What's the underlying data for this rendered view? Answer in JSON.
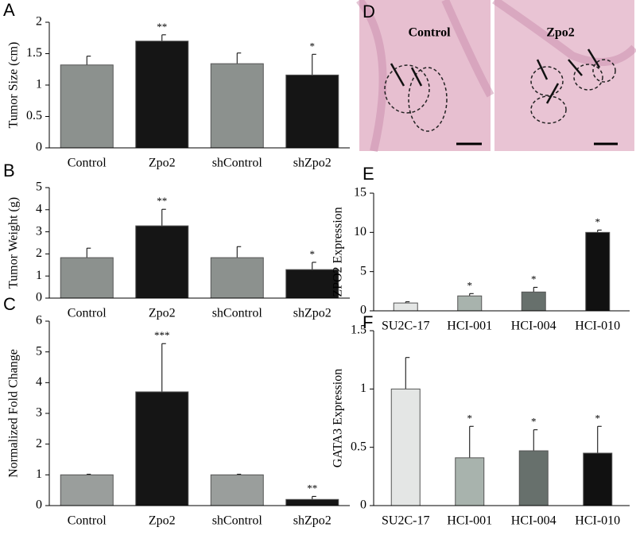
{
  "chart_data": [
    {
      "type": "bar",
      "panel": "A",
      "ylabel": "Tumor Size (cm)",
      "categories": [
        "Control",
        "Zpo2",
        "shControl",
        "shZpo2"
      ],
      "values": [
        1.32,
        1.7,
        1.34,
        1.16
      ],
      "errors": [
        0.14,
        0.1,
        0.17,
        0.33
      ],
      "colors": [
        "#8c918e",
        "#151515",
        "#8c918e",
        "#151515"
      ],
      "annotations": [
        null,
        "**",
        null,
        "*"
      ],
      "ylim": [
        0,
        2
      ],
      "yticks": [
        0,
        0.5,
        1,
        1.5,
        2
      ]
    },
    {
      "type": "bar",
      "panel": "B",
      "ylabel": "Tumor Weight (g)",
      "categories": [
        "Control",
        "Zpo2",
        "shControl",
        "shZpo2"
      ],
      "values": [
        1.83,
        3.27,
        1.83,
        1.29
      ],
      "errors": [
        0.43,
        0.75,
        0.5,
        0.33
      ],
      "colors": [
        "#8c918e",
        "#151515",
        "#8c918e",
        "#151515"
      ],
      "annotations": [
        null,
        "**",
        null,
        "*"
      ],
      "ylim": [
        0,
        5
      ],
      "yticks": [
        0,
        1,
        2,
        3,
        4,
        5
      ]
    },
    {
      "type": "bar",
      "panel": "C",
      "ylabel": "Normalized Fold Change",
      "categories": [
        "Control",
        "Zpo2",
        "shControl",
        "shZpo2"
      ],
      "values": [
        1.0,
        3.7,
        1.0,
        0.2
      ],
      "errors": [
        0.02,
        1.57,
        0.02,
        0.1
      ],
      "colors": [
        "#9a9e9c",
        "#151515",
        "#9a9e9c",
        "#151515"
      ],
      "annotations": [
        null,
        "***",
        null,
        "**"
      ],
      "ylim": [
        0,
        6
      ],
      "yticks": [
        0,
        1,
        2,
        3,
        4,
        5,
        6
      ]
    },
    {
      "type": "bar",
      "panel": "E",
      "ylabel": "ZPO2 Expression",
      "categories": [
        "SU2C-17",
        "HCI-001",
        "HCI-004",
        "HCI-010"
      ],
      "values": [
        1.0,
        1.9,
        2.4,
        10.0
      ],
      "errors": [
        0.15,
        0.3,
        0.6,
        0.3
      ],
      "colors": [
        "#e4e6e5",
        "#a8b3ad",
        "#67706c",
        "#111111"
      ],
      "annotations": [
        null,
        "*",
        "*",
        "*"
      ],
      "ylim": [
        0,
        15
      ],
      "yticks": [
        0,
        5,
        10,
        15
      ]
    },
    {
      "type": "bar",
      "panel": "F",
      "ylabel": "GATA3 Expression",
      "categories": [
        "SU2C-17",
        "HCI-001",
        "HCI-004",
        "HCI-010"
      ],
      "values": [
        1.0,
        0.41,
        0.47,
        0.45
      ],
      "errors": [
        0.27,
        0.27,
        0.18,
        0.23
      ],
      "colors": [
        "#e4e6e5",
        "#a8b3ad",
        "#67706c",
        "#111111"
      ],
      "annotations": [
        null,
        "*",
        "*",
        "*"
      ],
      "ylim": [
        0,
        1.5
      ],
      "yticks": [
        0,
        0.5,
        1,
        1.5
      ]
    }
  ],
  "panel_d": {
    "panel": "D",
    "left_label": "Control",
    "right_label": "Zpo2"
  }
}
